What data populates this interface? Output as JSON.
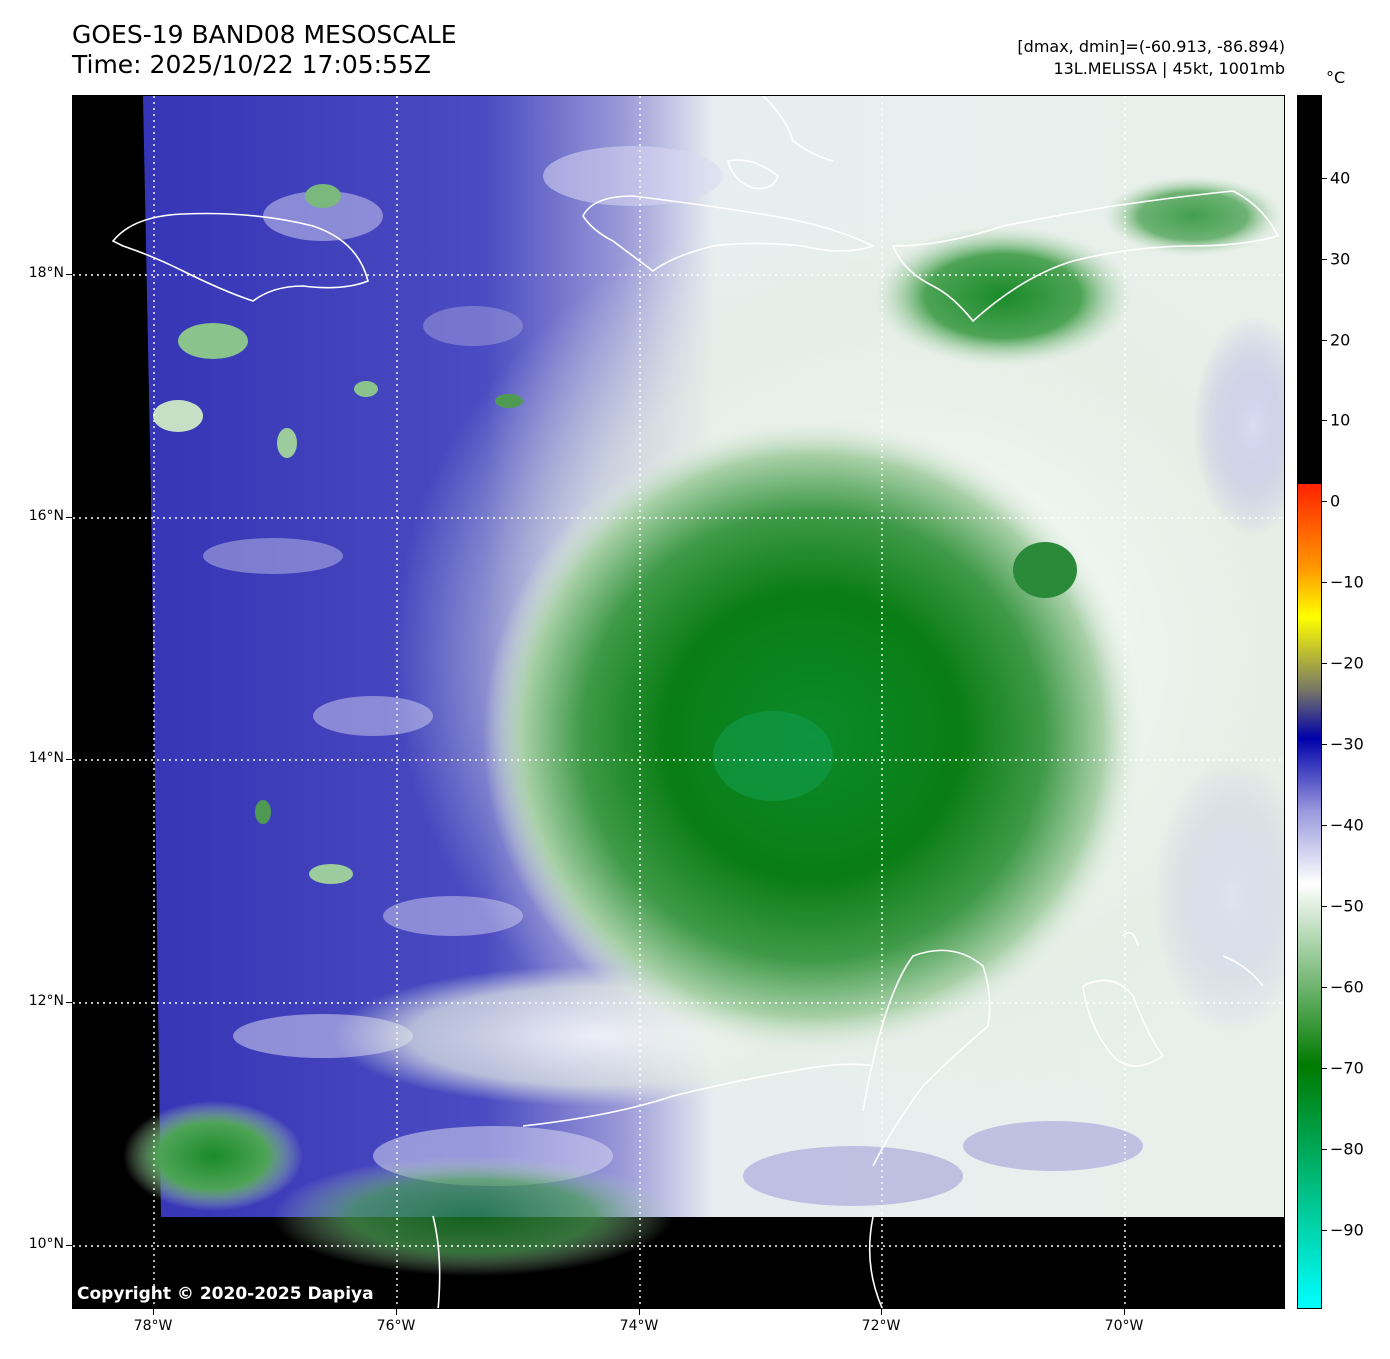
{
  "header": {
    "title_line1": "GOES-19 BAND08 MESOSCALE",
    "title_line2": "Time: 2025/10/22 17:05:55Z",
    "info_line1": "[dmax, dmin]=(-60.913, -86.894)",
    "info_line2": "13L.MELISSA | 45kt, 1001mb"
  },
  "map": {
    "lat_labels": [
      "18°N",
      "16°N",
      "14°N",
      "12°N",
      "10°N"
    ],
    "lon_labels": [
      "78°W",
      "76°W",
      "74°W",
      "72°W",
      "70°W"
    ],
    "copyright": "Copyright © 2020-2025 Dapiya"
  },
  "colorbar": {
    "unit": "°C",
    "ticks": [
      "40",
      "30",
      "20",
      "10",
      "0",
      "−10",
      "−20",
      "−30",
      "−40",
      "−50",
      "−60",
      "−70",
      "−80",
      "−90"
    ],
    "colors": {
      "warm_top": "#000000",
      "red": "#ff2200",
      "orange": "#ff9900",
      "yellow": "#ffff00",
      "gray": "#777766",
      "dark_blue": "#0000aa",
      "lavender": "#9999dd",
      "white": "#ffffff",
      "green": "#007a00",
      "cyan": "#00ffff"
    }
  },
  "colors": {
    "blue_clouds": "#3a3ab8",
    "deep_convection": "#0a7d14",
    "coastline": "#ffffff"
  }
}
